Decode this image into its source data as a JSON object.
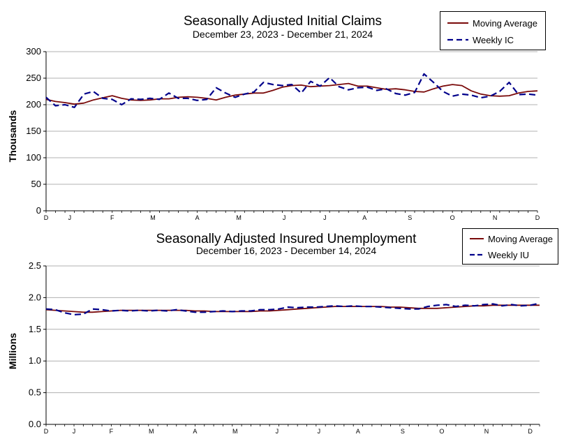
{
  "chart_data": [
    {
      "type": "line",
      "title": "Seasonally Adjusted Initial Claims",
      "subtitle": "December 23, 2023 - December 21, 2024",
      "ylabel": "Thousands",
      "xlabel": "",
      "ylim": [
        0,
        300
      ],
      "yticks": [
        "0",
        "50",
        "100",
        "150",
        "200",
        "250",
        "300"
      ],
      "month_ticks": [
        {
          "label": "D",
          "week": 0
        },
        {
          "label": "J",
          "week": 2.5
        },
        {
          "label": "F",
          "week": 7
        },
        {
          "label": "M",
          "week": 11.3
        },
        {
          "label": "A",
          "week": 16
        },
        {
          "label": "M",
          "week": 20.4
        },
        {
          "label": "J",
          "week": 25.2
        },
        {
          "label": "J",
          "week": 29.5
        },
        {
          "label": "A",
          "week": 33.7
        },
        {
          "label": "S",
          "week": 38.5
        },
        {
          "label": "O",
          "week": 43
        },
        {
          "label": "N",
          "week": 47.5
        },
        {
          "label": "D",
          "week": 52
        }
      ],
      "grid": "horizontal",
      "legend": "top-right",
      "series": [
        {
          "name": "Moving Average",
          "color": "#7a0a0a",
          "style": "solid",
          "values": [
            210,
            206,
            204,
            201,
            203,
            209,
            213,
            217,
            212,
            209,
            208,
            209,
            211,
            211,
            214,
            215,
            214,
            212,
            209,
            214,
            218,
            220,
            222,
            222,
            227,
            233,
            236,
            237,
            234,
            235,
            236,
            238,
            240,
            235,
            235,
            232,
            229,
            230,
            228,
            225,
            224,
            230,
            235,
            238,
            236,
            226,
            220,
            217,
            216,
            217,
            222,
            225,
            226
          ]
        },
        {
          "name": "Weekly IC",
          "color": "#00008b",
          "style": "dashed",
          "values": [
            214,
            198,
            200,
            195,
            220,
            225,
            212,
            210,
            200,
            211,
            210,
            212,
            210,
            222,
            212,
            212,
            208,
            210,
            232,
            222,
            214,
            220,
            224,
            242,
            238,
            236,
            238,
            222,
            244,
            235,
            251,
            234,
            228,
            232,
            233,
            227,
            230,
            221,
            218,
            223,
            258,
            242,
            225,
            216,
            220,
            218,
            213,
            216,
            225,
            242,
            219,
            220,
            218
          ]
        }
      ]
    },
    {
      "type": "line",
      "title": "Seasonally Adjusted Insured Unemployment",
      "subtitle": "December 16, 2023 - December 14, 2024",
      "ylabel": "Millions",
      "xlabel": "",
      "ylim": [
        0,
        2.5
      ],
      "yticks": [
        "0.0",
        "0.5",
        "1.0",
        "1.5",
        "2.0",
        "2.5"
      ],
      "month_ticks": [
        {
          "label": "D",
          "week": 0
        },
        {
          "label": "J",
          "week": 3
        },
        {
          "label": "F",
          "week": 7
        },
        {
          "label": "M",
          "week": 11.3
        },
        {
          "label": "A",
          "week": 16
        },
        {
          "label": "M",
          "week": 20.3
        },
        {
          "label": "J",
          "week": 24.8
        },
        {
          "label": "J",
          "week": 29.3
        },
        {
          "label": "A",
          "week": 33.5
        },
        {
          "label": "S",
          "week": 38.3
        },
        {
          "label": "O",
          "week": 42.5
        },
        {
          "label": "N",
          "week": 47.3
        },
        {
          "label": "D",
          "week": 52
        }
      ],
      "grid": "horizontal",
      "legend": "top-right",
      "series": [
        {
          "name": "Moving Average",
          "color": "#7a0a0a",
          "style": "solid",
          "values": [
            1.81,
            1.8,
            1.79,
            1.78,
            1.77,
            1.77,
            1.78,
            1.79,
            1.8,
            1.8,
            1.8,
            1.8,
            1.8,
            1.8,
            1.8,
            1.8,
            1.79,
            1.79,
            1.78,
            1.78,
            1.78,
            1.78,
            1.78,
            1.79,
            1.79,
            1.8,
            1.81,
            1.82,
            1.83,
            1.84,
            1.85,
            1.86,
            1.86,
            1.86,
            1.86,
            1.86,
            1.86,
            1.85,
            1.85,
            1.84,
            1.83,
            1.83,
            1.83,
            1.84,
            1.85,
            1.86,
            1.87,
            1.87,
            1.88,
            1.88,
            1.88,
            1.88,
            1.88,
            1.88
          ]
        },
        {
          "name": "Weekly IU",
          "color": "#00008b",
          "style": "dashed",
          "values": [
            1.82,
            1.81,
            1.76,
            1.73,
            1.74,
            1.82,
            1.81,
            1.79,
            1.8,
            1.79,
            1.8,
            1.79,
            1.8,
            1.79,
            1.81,
            1.79,
            1.77,
            1.77,
            1.78,
            1.79,
            1.78,
            1.79,
            1.79,
            1.81,
            1.81,
            1.82,
            1.85,
            1.84,
            1.85,
            1.85,
            1.86,
            1.87,
            1.86,
            1.87,
            1.86,
            1.86,
            1.85,
            1.84,
            1.83,
            1.82,
            1.82,
            1.86,
            1.88,
            1.89,
            1.86,
            1.88,
            1.87,
            1.89,
            1.9,
            1.87,
            1.89,
            1.87,
            1.88,
            1.91
          ]
        }
      ]
    }
  ]
}
